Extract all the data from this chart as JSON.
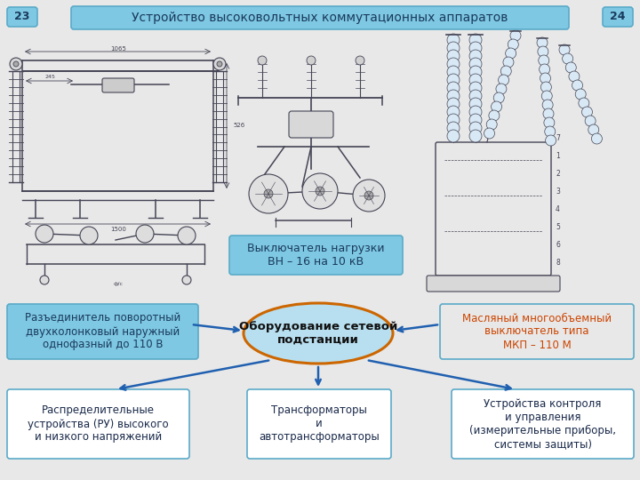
{
  "bg_color": "#e8e8e8",
  "title_text": "Устройство высоковольтных коммутационных аппаратов",
  "title_box_color": "#7ec8e3",
  "title_box_edge": "#5aaac8",
  "title_text_color": "#1a3a5c",
  "page_num_left": "23",
  "page_num_right": "24",
  "page_num_bg": "#7ec8e3",
  "page_num_edge": "#5aaac8",
  "center_ellipse_text": "Оборудование сетевой\nподстанции",
  "center_ellipse_fill": "#b8dff0",
  "center_ellipse_edge": "#cc6600",
  "center_ellipse_text_color": "#111111",
  "label_vn_text": "Выключатель нагрузки\nВН – 16 на 10 кВ",
  "label_vn_bg": "#7ec8e3",
  "label_vn_edge": "#5aaac8",
  "label_vn_text_color": "#1a3a5c",
  "box_left_text": "Разъединитель поворотный\nдвухколонковый наружный\nоднофазный до 110 В",
  "box_left_bg": "#7ec8e3",
  "box_left_edge": "#5aaac8",
  "box_left_text_color": "#1a3a5c",
  "box_right_text": "Масляный многообъемный\nвыключатель типа\nМКП – 110 М",
  "box_right_bg": "#e8e8e8",
  "box_right_edge": "#5aaac8",
  "box_right_text_color": "#cc4400",
  "box_bottom_left_text": "Распределительные\nустройства (РУ) высокого\nи низкого напряжений",
  "box_bottom_center_text": "Трансформаторы\nи\nавтотрансформаторы",
  "box_bottom_right_text": "Устройства контроля\nи управления\n(измерительные приборы,\nсистемы защиты)",
  "box_bottom_bg": "#ffffff",
  "box_bottom_edge": "#5aaac8",
  "box_bottom_text_color": "#1a2a4a",
  "arrow_color": "#2060b0",
  "sketch_color": "#444455",
  "sketch_lw": 0.8
}
